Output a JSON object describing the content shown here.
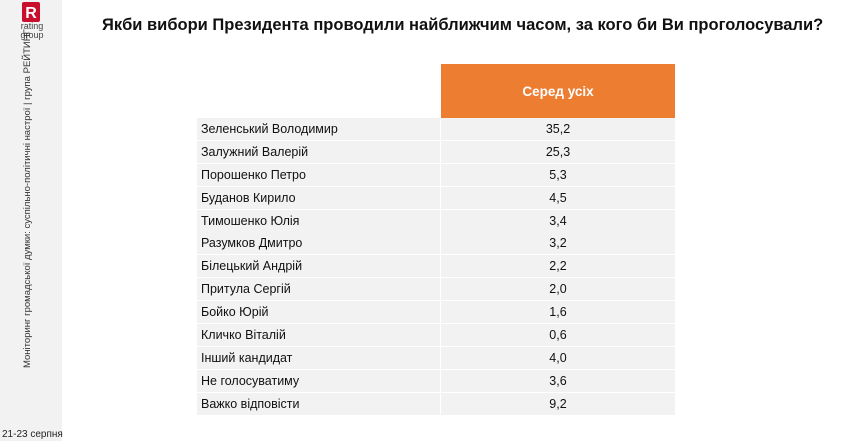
{
  "sidebar": {
    "logo": {
      "letter": "R",
      "line1": "rating",
      "line2": "group",
      "color": "#c8102e"
    },
    "vertical_caption": "Моніторинг громадської думки: суспільно-політичні настрої | група РЕЙТИНГ",
    "date": "21-23 серпня"
  },
  "title": "Якби вибори Президента проводили найближчим часом, за кого би Ви проголосували?",
  "chart_data": {
    "type": "table",
    "title": "Якби вибори Президента проводили найближчим часом, за кого би Ви проголосували?",
    "header_color": "#ed7d31",
    "columns": [
      "",
      "Серед усіх"
    ],
    "rows": [
      {
        "name": "Зеленський Володимир",
        "value": "35,2"
      },
      {
        "name": "Залужний Валерій",
        "value": "25,3"
      },
      {
        "name": "Порошенко Петро",
        "value": "5,3"
      },
      {
        "name": "Буданов Кирило",
        "value": "4,5"
      },
      {
        "name": "Тимошенко Юлія",
        "value": "3,4"
      },
      {
        "name": "Разумков Дмитро",
        "value": "3,2"
      },
      {
        "name": "Білецький Андрій",
        "value": "2,2"
      },
      {
        "name": "Притула Сергій",
        "value": "2,0"
      },
      {
        "name": "Бойко Юрій",
        "value": "1,6"
      },
      {
        "name": "Кличко Віталій",
        "value": "0,6"
      },
      {
        "name": "Інший кандидат",
        "value": "4,0"
      },
      {
        "name": "Не голосуватиму",
        "value": "3,6"
      },
      {
        "name": "Важко відповісти",
        "value": "9,2"
      }
    ]
  }
}
